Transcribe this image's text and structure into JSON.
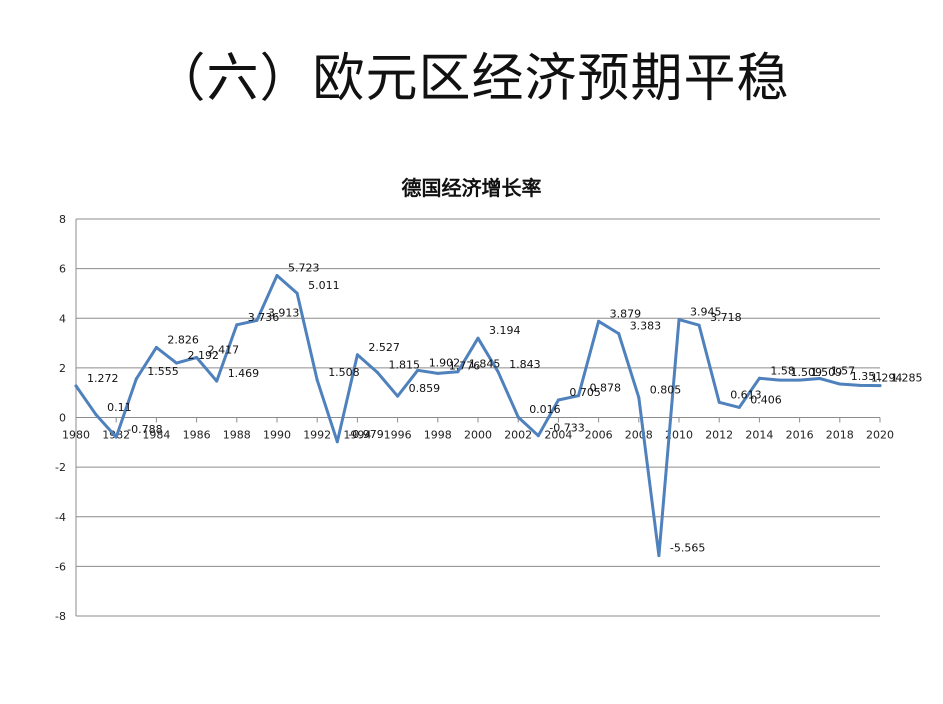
{
  "slide": {
    "title": "（六）欧元区经济预期平稳"
  },
  "chart_data": {
    "type": "line",
    "title": "德国经济增长率",
    "xlabel": "",
    "ylabel": "",
    "xlim": [
      1980,
      2020
    ],
    "ylim": [
      -8,
      8
    ],
    "yticks": [
      -8,
      -6,
      -4,
      -2,
      0,
      2,
      4,
      6,
      8
    ],
    "xticks": [
      1980,
      1982,
      1984,
      1986,
      1988,
      1990,
      1992,
      1994,
      1996,
      1998,
      2000,
      2002,
      2004,
      2006,
      2008,
      2010,
      2012,
      2014,
      2016,
      2018,
      2020
    ],
    "grid": "horizontal",
    "legend": "none",
    "series_color": "#4F81BD",
    "x": [
      1980,
      1981,
      1982,
      1983,
      1984,
      1985,
      1986,
      1987,
      1988,
      1989,
      1990,
      1991,
      1992,
      1993,
      1994,
      1995,
      1996,
      1997,
      1998,
      1999,
      2000,
      2001,
      2002,
      2003,
      2004,
      2005,
      2006,
      2007,
      2008,
      2009,
      2010,
      2011,
      2012,
      2013,
      2014,
      2015,
      2016,
      2017,
      2018,
      2019,
      2020
    ],
    "values": [
      1.272,
      0.11,
      -0.788,
      1.555,
      2.826,
      2.192,
      2.417,
      1.469,
      3.736,
      3.913,
      5.723,
      5.011,
      1.508,
      -0.979,
      2.527,
      1.815,
      0.859,
      1.902,
      1.776,
      1.845,
      3.194,
      1.843,
      0.016,
      -0.733,
      0.705,
      0.878,
      3.879,
      3.383,
      0.805,
      -5.565,
      3.945,
      3.718,
      0.613,
      0.406,
      1.58,
      1.509,
      1.509,
      1.57,
      1.351,
      1.294,
      1.285
    ],
    "labels": [
      "1.272",
      "0.11",
      "-0.788",
      "1.555",
      "2.826",
      "2.192",
      "2.417",
      "1.469",
      "3.736",
      "3.913",
      "5.723",
      "5.011",
      "1.508",
      "-0.979",
      "2.527",
      "1.815",
      "0.859",
      "1.902",
      "1.776",
      "1.845",
      "3.194",
      "1.843",
      "0.016",
      "-0.733",
      "0.705",
      "0.878",
      "3.879",
      "3.383",
      "0.805",
      "-5.565",
      "3.945",
      "3.718",
      "0.613",
      "0.406",
      "1.58",
      "1.509",
      "1.509",
      "1.57",
      "1.351",
      "1.294",
      "1.285"
    ]
  }
}
